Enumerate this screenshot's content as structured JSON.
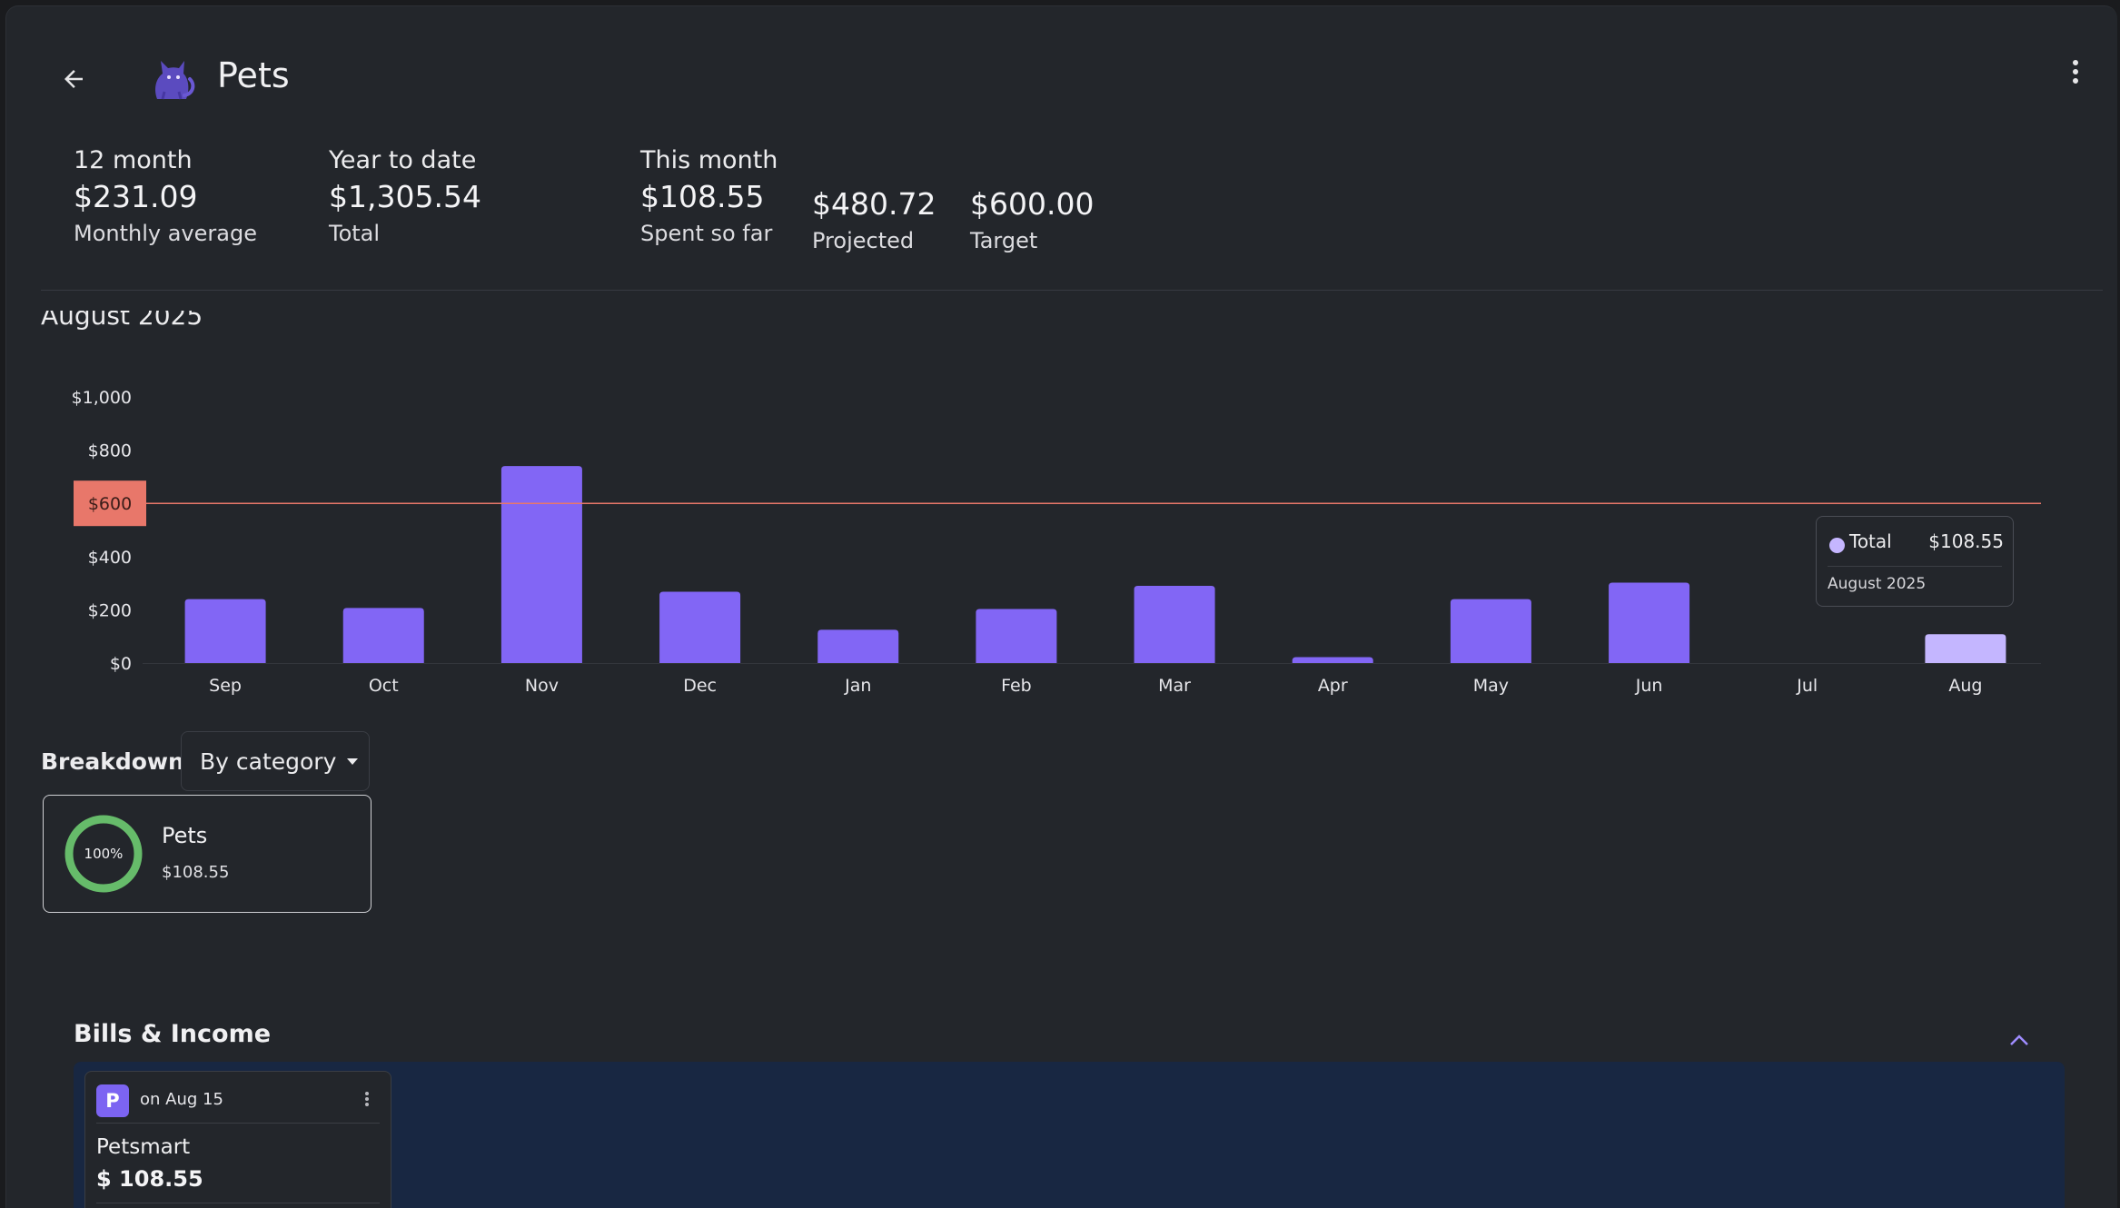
{
  "header": {
    "title": "Pets",
    "back_icon": "arrow-left-icon",
    "category_icon": "cat-icon",
    "menu_icon": "more-vertical-icon"
  },
  "stats": {
    "twelve_month": {
      "label": "12 month",
      "value": "$231.09",
      "caption": "Monthly average"
    },
    "year_to_date": {
      "label": "Year to date",
      "value": "$1,305.54",
      "caption": "Total"
    },
    "this_month": {
      "label": "This month",
      "value": "$108.55",
      "caption": "Spent so far"
    },
    "projected": {
      "value": "$480.72",
      "caption": "Projected"
    },
    "target": {
      "value": "$600.00",
      "caption": "Target"
    }
  },
  "chart_heading": "August 2025",
  "chart_data": {
    "type": "bar",
    "categories": [
      "Sep",
      "Oct",
      "Nov",
      "Dec",
      "Jan",
      "Feb",
      "Mar",
      "Apr",
      "May",
      "Jun",
      "Jul",
      "Aug"
    ],
    "values": [
      240,
      207,
      740,
      268,
      125,
      203,
      290,
      22,
      240,
      302,
      0,
      108.55
    ],
    "highlighted_category": "Aug",
    "ylim": [
      0,
      1000
    ],
    "yticks": [
      0,
      200,
      400,
      600,
      800,
      1000
    ],
    "ytick_labels": [
      "$0",
      "$200",
      "$400",
      "$600",
      "$800",
      "$1,000"
    ],
    "target_line": {
      "value": 600,
      "label": "$600"
    },
    "grid": false,
    "colors": {
      "bar": "#8266f5",
      "bar_highlight": "#c4b6ff",
      "target": "#e8776a"
    }
  },
  "tooltip": {
    "series_name": "Total",
    "value": "$108.55",
    "date": "August 2025",
    "dot_color": "#c5b6ff"
  },
  "breakdown": {
    "label": "Breakdown",
    "selector_value": "By category",
    "categories": [
      {
        "name": "Pets",
        "amount": "$108.55",
        "percent_label": "100%",
        "percent": 100,
        "color": "#66bb6a"
      }
    ]
  },
  "bills": {
    "title": "Bills & Income",
    "collapse_icon": "chevron-up-icon",
    "items": [
      {
        "avatar_letter": "P",
        "due": "on Aug 15",
        "name": "Petsmart",
        "amount": "$ 108.55"
      }
    ]
  }
}
